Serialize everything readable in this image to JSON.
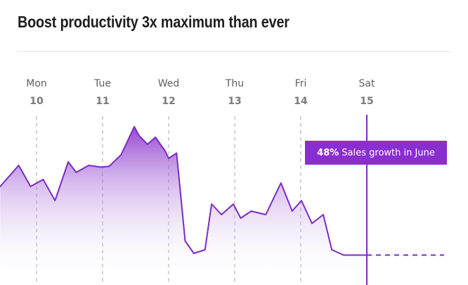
{
  "title": "Boost productivity 3x maximum than ever",
  "callout": {
    "percent": "48%",
    "text": "Sales growth in June"
  },
  "colors": {
    "accent": "#8a2fcf",
    "line": "#7b2cbf",
    "grid": "#bdbdbd",
    "title": "#1e1e1e"
  },
  "chart_data": {
    "type": "area",
    "x_ticks": [
      {
        "day": "Mon",
        "date": "10",
        "x": 10
      },
      {
        "day": "Tue",
        "date": "11",
        "x": 11
      },
      {
        "day": "Wed",
        "date": "12",
        "x": 12
      },
      {
        "day": "Thu",
        "date": "13",
        "x": 13
      },
      {
        "day": "Fri",
        "date": "14",
        "x": 14
      },
      {
        "day": "Sat",
        "date": "15",
        "x": 15
      }
    ],
    "highlight_x": 15,
    "xlim": [
      9.45,
      15.2
    ],
    "ylim": [
      0,
      100
    ],
    "projection_to_x": 16.17,
    "grid": "vertical-dashed",
    "series": [
      {
        "x": [
          9.45,
          9.73,
          9.91,
          10.1,
          10.28,
          10.48,
          10.6,
          10.79,
          10.98,
          11.1,
          11.28,
          11.48,
          11.55,
          11.68,
          11.8,
          11.95,
          12.0,
          12.12,
          12.25,
          12.38,
          12.55,
          12.65,
          12.8,
          12.98,
          13.09,
          13.25,
          13.47,
          13.7,
          13.87,
          14.01,
          14.17,
          14.34,
          14.47,
          14.65,
          14.88,
          15.0
        ],
        "y": [
          56,
          68,
          56,
          60,
          48,
          70,
          64,
          68,
          67,
          67.5,
          74,
          90,
          85,
          80,
          84,
          76,
          72,
          75,
          25,
          18,
          20,
          46,
          40,
          46,
          38,
          42,
          40,
          58,
          42,
          48,
          35,
          40,
          20,
          17,
          17,
          17
        ]
      }
    ]
  }
}
